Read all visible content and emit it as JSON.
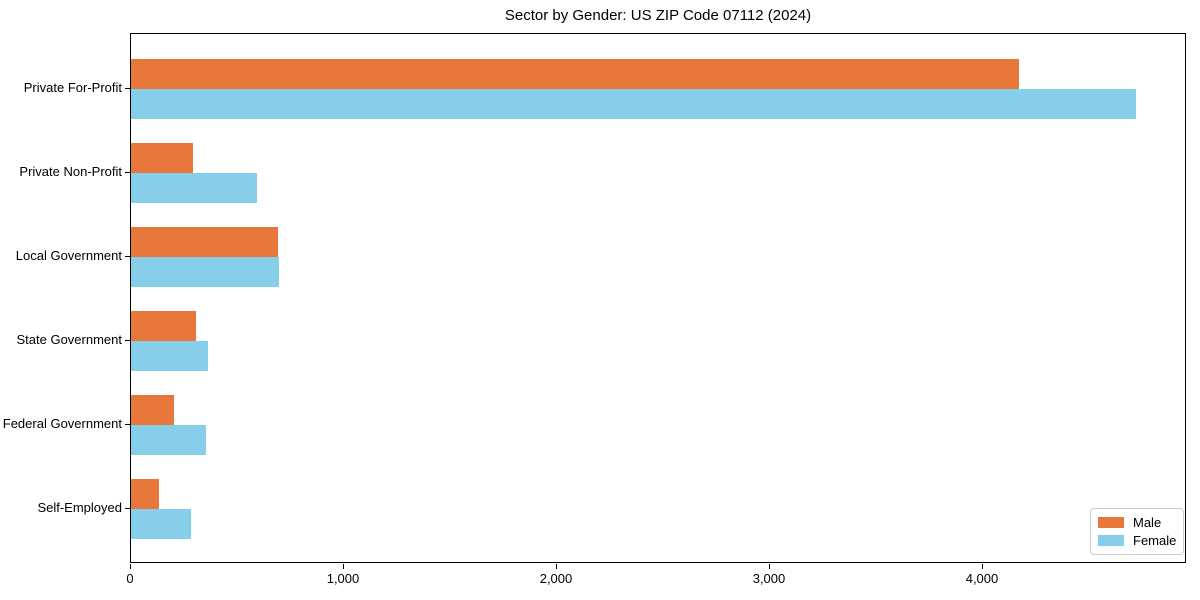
{
  "title": "Sector by Gender: US ZIP Code 07112 (2024)",
  "colors": {
    "male": "#e8773c",
    "female": "#87ceeb",
    "spine": "#000000",
    "legend_border": "#cccccc",
    "background": "#ffffff"
  },
  "legend": {
    "position": "lower right",
    "entries": [
      {
        "label": "Male",
        "color": "#e8773c"
      },
      {
        "label": "Female",
        "color": "#87ceeb"
      }
    ]
  },
  "chart_data": {
    "type": "bar",
    "orientation": "horizontal",
    "title": "Sector by Gender: US ZIP Code 07112 (2024)",
    "categories": [
      "Private For-Profit",
      "Private Non-Profit",
      "Local Government",
      "State Government",
      "Federal Government",
      "Self-Employed"
    ],
    "series": [
      {
        "name": "Male",
        "color": "#e8773c",
        "values": [
          4170,
          290,
          690,
          305,
          200,
          130
        ]
      },
      {
        "name": "Female",
        "color": "#87ceeb",
        "values": [
          4720,
          590,
          695,
          360,
          350,
          280
        ]
      }
    ],
    "xlabel": "",
    "ylabel": "",
    "xlim": [
      0,
      4960
    ],
    "xticks": [
      0,
      1000,
      2000,
      3000,
      4000
    ],
    "xtick_labels": [
      "0",
      "1,000",
      "2,000",
      "3,000",
      "4,000"
    ],
    "grid": false,
    "legend_position": "lower right"
  }
}
